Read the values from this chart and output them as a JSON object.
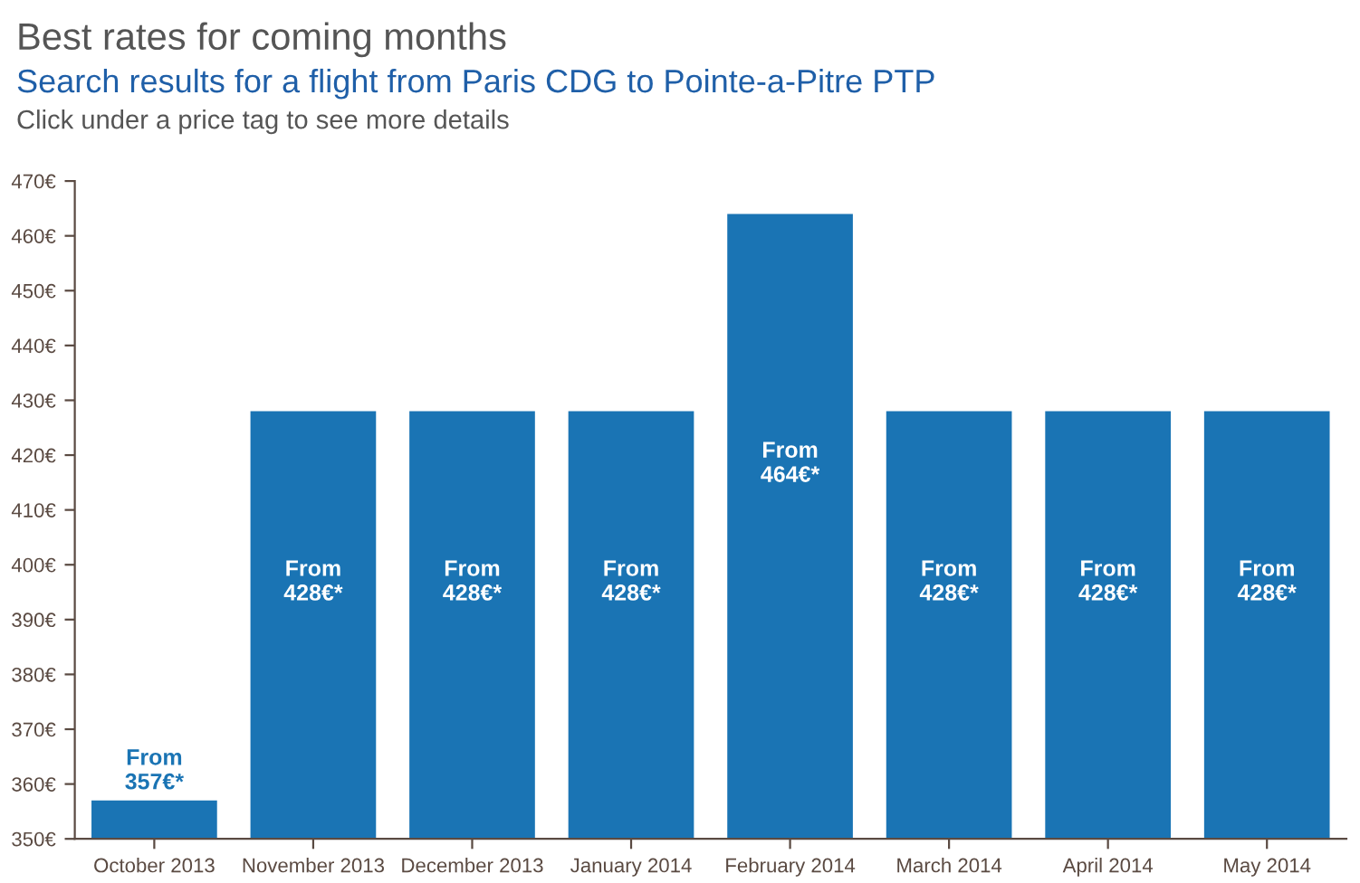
{
  "chart_data": {
    "type": "bar",
    "title": "Best rates for coming months",
    "subtitle": "Search results for a flight from Paris CDG to Pointe-a-Pitre PTP",
    "annotations": [
      "Click under a price tag to see more details"
    ],
    "categories": [
      "October 2013",
      "November 2013",
      "December 2013",
      "January 2014",
      "February 2014",
      "March 2014",
      "April 2014",
      "May 2014"
    ],
    "values": [
      357,
      428,
      428,
      428,
      464,
      428,
      428,
      428
    ],
    "value_labels": [
      "From\n357€*",
      "From\n428€*",
      "From\n428€*",
      "From\n428€*",
      "From\n464€*",
      "From\n428€*",
      "From\n428€*",
      "From\n428€*"
    ],
    "color": "#1a74b4",
    "ylim": [
      350,
      470
    ],
    "yticks": [
      {
        "value": 350,
        "label": "350€"
      },
      {
        "value": 360,
        "label": "360€"
      },
      {
        "value": 370,
        "label": "370€"
      },
      {
        "value": 380,
        "label": "380€"
      },
      {
        "value": 390,
        "label": "390€"
      },
      {
        "value": 400,
        "label": "400€"
      },
      {
        "value": 410,
        "label": "410€"
      },
      {
        "value": 420,
        "label": "420€"
      },
      {
        "value": 430,
        "label": "430€"
      },
      {
        "value": 440,
        "label": "440€"
      },
      {
        "value": 450,
        "label": "450€"
      },
      {
        "value": 460,
        "label": "460€"
      },
      {
        "value": 470,
        "label": "470€"
      }
    ],
    "grid": false,
    "legend": false
  }
}
